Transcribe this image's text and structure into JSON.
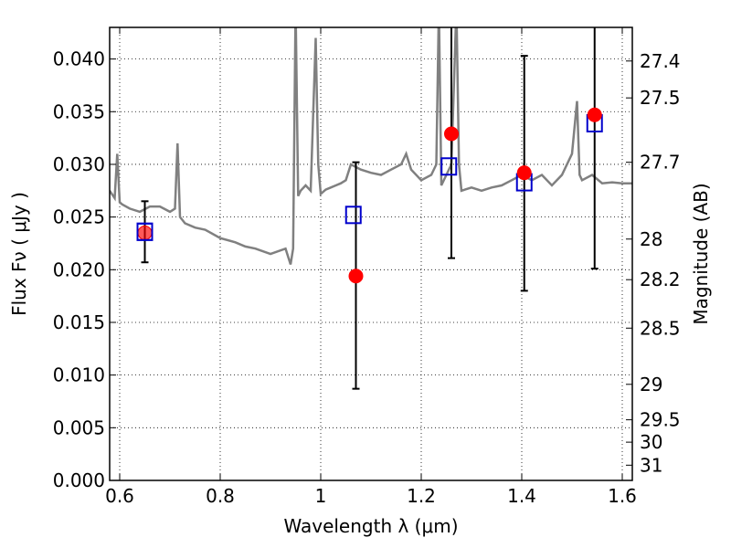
{
  "chart_data": {
    "type": "scatter",
    "xlabel": "Wavelength  λ (μm)",
    "ylabel": "Flux  Fν  ( μJy )",
    "ylabel_right": "Magnitude (AB)",
    "xlim": [
      0.58,
      1.62
    ],
    "ylim": [
      0.0,
      0.043
    ],
    "grid": true,
    "x_ticks": [
      {
        "value": 0.6,
        "label": "0.6"
      },
      {
        "value": 0.8,
        "label": "0.8"
      },
      {
        "value": 1.0,
        "label": "1"
      },
      {
        "value": 1.2,
        "label": "1.2"
      },
      {
        "value": 1.4,
        "label": "1.4"
      },
      {
        "value": 1.6,
        "label": "1.6"
      }
    ],
    "y_ticks": [
      {
        "value": 0.0,
        "label": "0.000"
      },
      {
        "value": 0.005,
        "label": "0.005"
      },
      {
        "value": 0.01,
        "label": "0.010"
      },
      {
        "value": 0.015,
        "label": "0.015"
      },
      {
        "value": 0.02,
        "label": "0.020"
      },
      {
        "value": 0.025,
        "label": "0.025"
      },
      {
        "value": 0.03,
        "label": "0.030"
      },
      {
        "value": 0.035,
        "label": "0.035"
      },
      {
        "value": 0.04,
        "label": "0.040"
      }
    ],
    "mag_ticks": [
      {
        "mag": 27.4,
        "label": "27.4"
      },
      {
        "mag": 27.5,
        "label": "27.5"
      },
      {
        "mag": 27.7,
        "label": "27.7"
      },
      {
        "mag": 28.0,
        "label": "28"
      },
      {
        "mag": 28.2,
        "label": "28.2"
      },
      {
        "mag": 28.5,
        "label": "28.5"
      },
      {
        "mag": 29.0,
        "label": "29"
      },
      {
        "mag": 29.5,
        "label": "29.5"
      },
      {
        "mag": 30.0,
        "label": "30"
      },
      {
        "mag": 31.0,
        "label": "31"
      }
    ],
    "model_spectrum": {
      "color": "#808080",
      "x": [
        0.58,
        0.59,
        0.595,
        0.6,
        0.605,
        0.62,
        0.64,
        0.66,
        0.68,
        0.7,
        0.71,
        0.715,
        0.72,
        0.73,
        0.75,
        0.77,
        0.8,
        0.83,
        0.85,
        0.87,
        0.9,
        0.93,
        0.94,
        0.945,
        0.95,
        0.955,
        0.96,
        0.97,
        0.98,
        0.99,
        0.995,
        1.0,
        1.01,
        1.02,
        1.03,
        1.04,
        1.05,
        1.06,
        1.08,
        1.1,
        1.12,
        1.14,
        1.16,
        1.17,
        1.18,
        1.2,
        1.22,
        1.23,
        1.235,
        1.24,
        1.26,
        1.27,
        1.275,
        1.28,
        1.3,
        1.32,
        1.34,
        1.36,
        1.38,
        1.4,
        1.42,
        1.44,
        1.46,
        1.48,
        1.5,
        1.51,
        1.515,
        1.52,
        1.54,
        1.56,
        1.58,
        1.6,
        1.62
      ],
      "y": [
        0.0275,
        0.0268,
        0.031,
        0.0264,
        0.0262,
        0.0258,
        0.0255,
        0.026,
        0.026,
        0.0255,
        0.0258,
        0.032,
        0.025,
        0.0244,
        0.024,
        0.0238,
        0.023,
        0.0226,
        0.0222,
        0.022,
        0.0215,
        0.022,
        0.0205,
        0.022,
        0.045,
        0.027,
        0.0275,
        0.028,
        0.0275,
        0.042,
        0.03,
        0.0272,
        0.0276,
        0.0278,
        0.028,
        0.0282,
        0.0285,
        0.03,
        0.0295,
        0.0292,
        0.029,
        0.0295,
        0.03,
        0.031,
        0.0295,
        0.0285,
        0.029,
        0.03,
        0.045,
        0.028,
        0.03,
        0.045,
        0.03,
        0.0275,
        0.0278,
        0.0275,
        0.0278,
        0.028,
        0.0285,
        0.029,
        0.0285,
        0.029,
        0.028,
        0.029,
        0.031,
        0.036,
        0.029,
        0.0285,
        0.029,
        0.0282,
        0.0283,
        0.0282,
        0.0282
      ]
    },
    "observed": {
      "color": "#ff0000",
      "marker": "circle",
      "points": [
        {
          "x": 0.65,
          "y": 0.0235,
          "err_low": 0.0207,
          "err_high": 0.0265
        },
        {
          "x": 1.07,
          "y": 0.0194,
          "err_low": 0.0087,
          "err_high": 0.0302
        },
        {
          "x": 1.26,
          "y": 0.0329,
          "err_low": 0.0211,
          "err_high": 0.043
        },
        {
          "x": 1.405,
          "y": 0.0292,
          "err_low": 0.018,
          "err_high": 0.0403
        },
        {
          "x": 1.545,
          "y": 0.0347,
          "err_low": 0.0201,
          "err_high": 0.043
        }
      ]
    },
    "model_points": {
      "color": "#0000cc",
      "marker": "square",
      "points": [
        {
          "x": 0.65,
          "y": 0.0236
        },
        {
          "x": 1.065,
          "y": 0.0252
        },
        {
          "x": 1.255,
          "y": 0.0298
        },
        {
          "x": 1.405,
          "y": 0.0283
        },
        {
          "x": 1.545,
          "y": 0.0339
        }
      ]
    }
  }
}
